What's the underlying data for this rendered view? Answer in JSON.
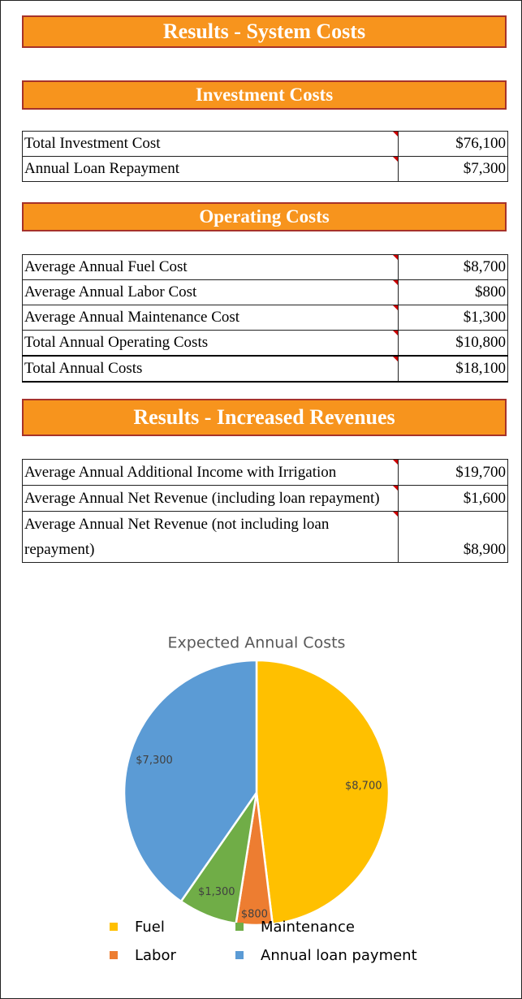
{
  "header": {
    "title": "Results - System Costs"
  },
  "investment": {
    "title": "Investment Costs",
    "rows": [
      [
        "Total Investment Cost",
        "$76,100"
      ],
      [
        "Annual Loan Repayment",
        "$7,300"
      ]
    ]
  },
  "operating": {
    "title": "Operating Costs",
    "rows": [
      [
        "Average Annual Fuel Cost",
        "$8,700"
      ],
      [
        "Average Annual Labor Cost",
        "$800"
      ],
      [
        "Average Annual Maintenance Cost",
        "$1,300"
      ],
      [
        "Total Annual Operating Costs",
        "$10,800"
      ],
      [
        "Total Annual Costs",
        "$18,100"
      ]
    ]
  },
  "revenues": {
    "title": "Results - Increased Revenues",
    "rows": [
      [
        "Average Annual Additional Income with Irrigation",
        "$19,700"
      ],
      [
        "Average Annual Net Revenue (including loan repayment)",
        "$1,600"
      ],
      [
        "Average Annual Net Revenue (not including loan repayment)",
        "$8,900"
      ]
    ]
  },
  "chart_data": {
    "type": "pie",
    "title": "Expected Annual Costs",
    "categories": [
      "Fuel",
      "Labor",
      "Maintenance",
      "Annual loan payment"
    ],
    "values": [
      8700,
      800,
      1300,
      7300
    ],
    "value_labels": [
      "$8,700",
      "$800",
      "$1,300",
      "$7,300"
    ],
    "colors": [
      "#ffc000",
      "#ed7d31",
      "#70ad47",
      "#5b9bd5"
    ]
  }
}
